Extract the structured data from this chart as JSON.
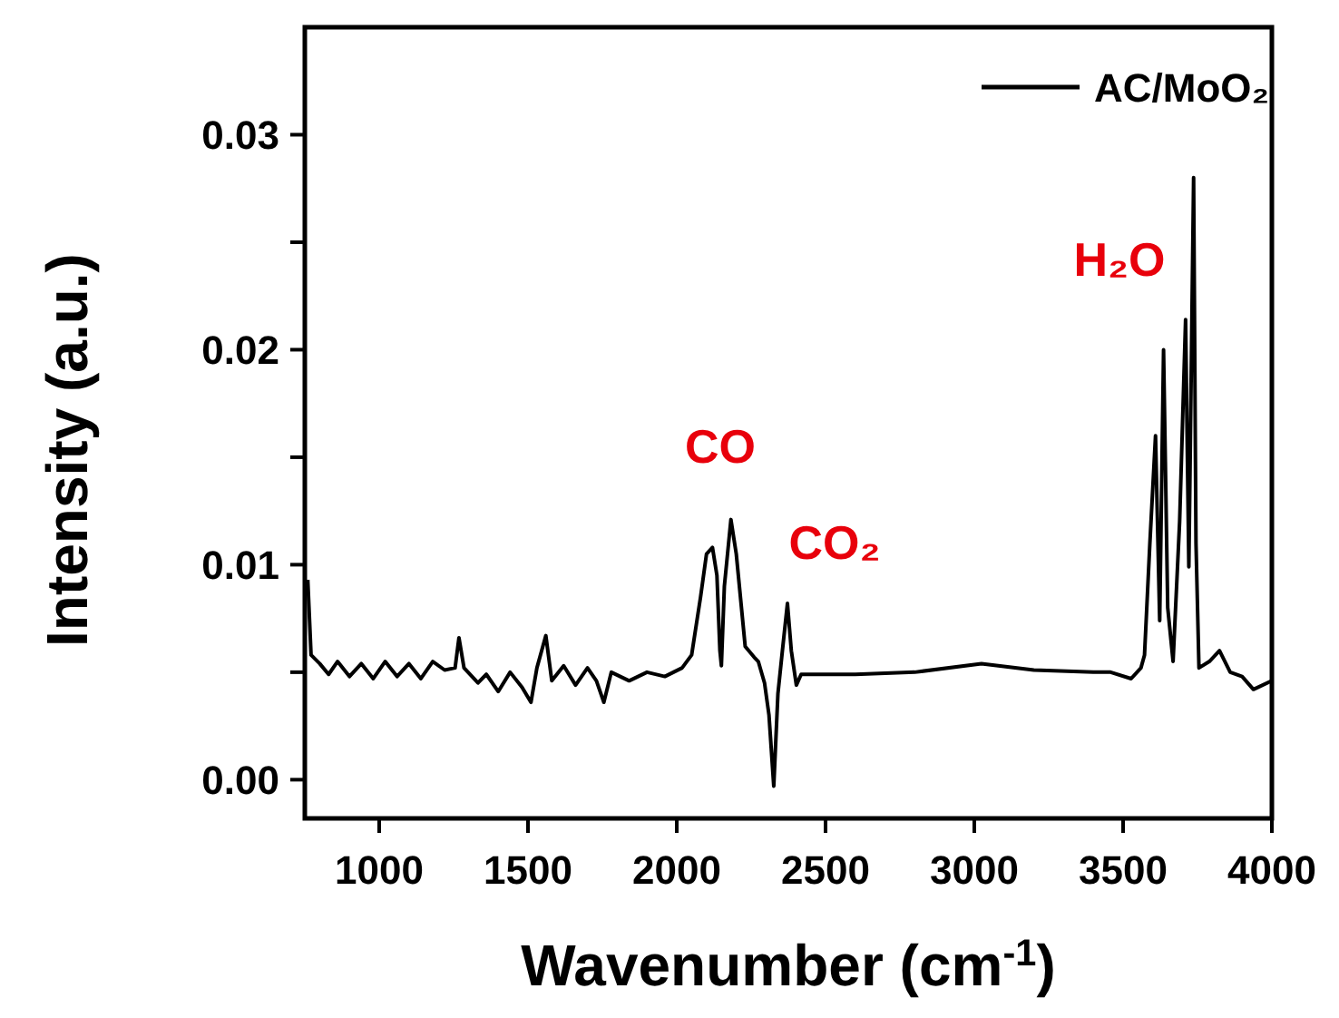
{
  "chart_data": {
    "type": "line",
    "xlabel": "Wavenumber (cm$^{-1}$)",
    "ylabel": "Intensity (a.u.)",
    "xlim": [
      750,
      4000
    ],
    "xticks": [
      1000,
      1500,
      2000,
      2500,
      3000,
      3500,
      4000
    ],
    "ylim": [
      -0.0018,
      0.035
    ],
    "yticks": [
      {
        "value": 0,
        "label": "0.00"
      },
      {
        "value": 0.005,
        "label": null
      },
      {
        "value": 0.01,
        "label": "0.01"
      },
      {
        "value": 0.015,
        "label": null
      },
      {
        "value": 0.02,
        "label": "0.02"
      },
      {
        "value": 0.025,
        "label": null
      },
      {
        "value": 0.03,
        "label": "0.03"
      }
    ],
    "legend": "top right",
    "grid": false,
    "marker": "none",
    "line_style": "solid",
    "annotations": [
      "CO",
      "CO₂",
      "H₂O"
    ],
    "series": [
      {
        "name": "AC/MoO₂",
        "color": "#000000",
        "x": [
          760,
          771,
          800,
          830,
          860,
          900,
          940,
          980,
          1020,
          1060,
          1100,
          1140,
          1180,
          1220,
          1255,
          1268,
          1285,
          1332,
          1360,
          1400,
          1440,
          1480,
          1510,
          1530,
          1560,
          1580,
          1620,
          1660,
          1700,
          1730,
          1755,
          1780,
          1840,
          1900,
          1960,
          2018,
          2050,
          2080,
          2100,
          2120,
          2135,
          2145,
          2150,
          2160,
          2182,
          2200,
          2230,
          2260,
          2274,
          2295,
          2310,
          2326,
          2340,
          2355,
          2372,
          2385,
          2402,
          2418,
          2600,
          2800,
          3024,
          3200,
          3400,
          3458,
          3527,
          3560,
          3572,
          3590,
          3609,
          3623,
          3636,
          3650,
          3668,
          3690,
          3710,
          3721,
          3737,
          3745,
          3755,
          3790,
          3824,
          3860,
          3900,
          3938,
          4000
        ],
        "values": [
          0.0093,
          0.0058,
          0.0054,
          0.0049,
          0.0055,
          0.0048,
          0.0054,
          0.0047,
          0.0055,
          0.0048,
          0.0054,
          0.0047,
          0.0055,
          0.0051,
          0.0052,
          0.0066,
          0.0052,
          0.0045,
          0.0049,
          0.0041,
          0.005,
          0.0043,
          0.0036,
          0.0052,
          0.0067,
          0.0046,
          0.0053,
          0.0044,
          0.0052,
          0.0046,
          0.0036,
          0.005,
          0.0046,
          0.005,
          0.0048,
          0.0052,
          0.0058,
          0.0085,
          0.0105,
          0.0108,
          0.0095,
          0.006,
          0.0053,
          0.009,
          0.0121,
          0.0105,
          0.0062,
          0.0057,
          0.0055,
          0.0045,
          0.003,
          -0.0003,
          0.004,
          0.006,
          0.0082,
          0.006,
          0.0044,
          0.0049,
          0.0049,
          0.005,
          0.0054,
          0.0051,
          0.005,
          0.005,
          0.0047,
          0.0052,
          0.0058,
          0.011,
          0.016,
          0.0074,
          0.02,
          0.008,
          0.0055,
          0.012,
          0.0214,
          0.0099,
          0.028,
          0.011,
          0.0052,
          0.0055,
          0.006,
          0.005,
          0.0048,
          0.0042,
          0.0046
        ]
      }
    ]
  }
}
